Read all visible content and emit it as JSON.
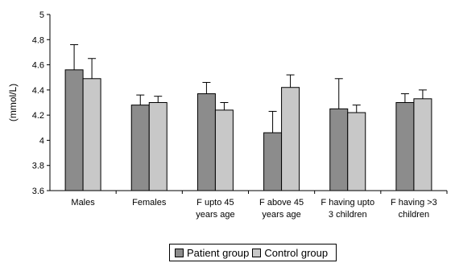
{
  "chart_data": {
    "type": "bar",
    "categories": [
      [
        "Males"
      ],
      [
        "Females"
      ],
      [
        "F upto 45",
        "years age"
      ],
      [
        "F above 45",
        "years age"
      ],
      [
        "F having upto",
        "3 children"
      ],
      [
        "F having >3",
        "children"
      ]
    ],
    "series": [
      {
        "name": "Patient group",
        "color": "#8c8c8c",
        "values": [
          4.56,
          4.28,
          4.37,
          4.06,
          4.25,
          4.3
        ],
        "error": [
          0.2,
          0.08,
          0.09,
          0.17,
          0.24,
          0.07
        ]
      },
      {
        "name": "Control group",
        "color": "#c8c8c8",
        "values": [
          4.49,
          4.3,
          4.24,
          4.42,
          4.22,
          4.33
        ],
        "error": [
          0.16,
          0.05,
          0.06,
          0.1,
          0.06,
          0.07
        ]
      }
    ],
    "ylabel": "(mmol/L)",
    "ylim": [
      3.6,
      5
    ],
    "yticks": [
      "3.6",
      "3.8",
      "4",
      "4.2",
      "4.4",
      "4.6",
      "4.8",
      "5"
    ],
    "grid": false,
    "legend_position": "bottom"
  }
}
